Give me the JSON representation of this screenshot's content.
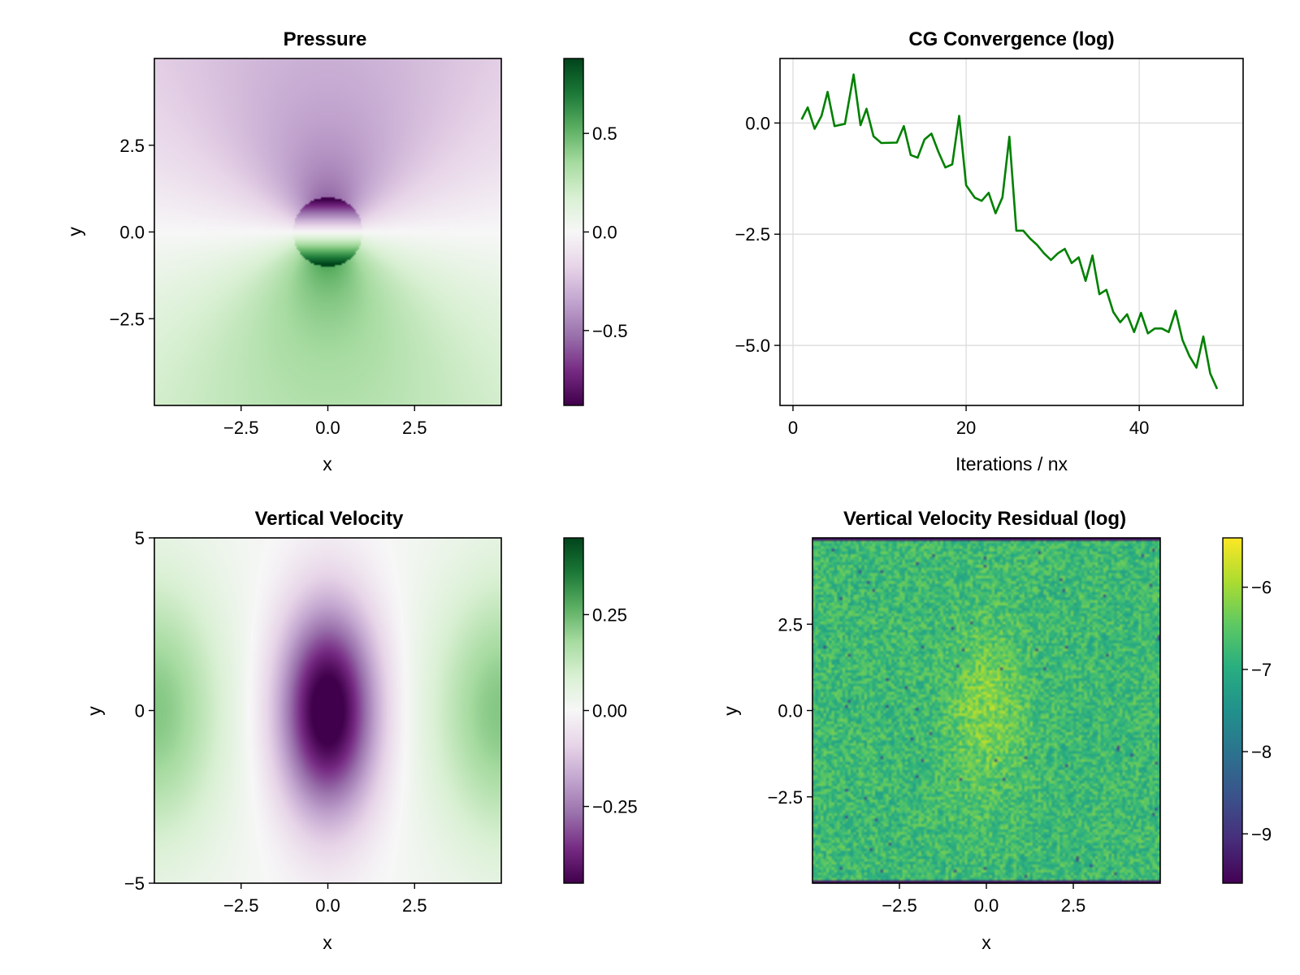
{
  "chart_data": [
    {
      "type": "heatmap",
      "title": "Pressure",
      "xlabel": "x",
      "ylabel": "y",
      "xlim": [
        -5,
        5
      ],
      "ylim": [
        -5,
        5
      ],
      "xticks": [
        -2.5,
        0.0,
        2.5
      ],
      "xtick_labels": [
        "−2.5",
        "0.0",
        "2.5"
      ],
      "yticks": [
        -2.5,
        0.0,
        2.5
      ],
      "ytick_labels": [
        "−2.5",
        "0.0",
        "2.5"
      ],
      "colormap": "PRGn",
      "colorbar": {
        "range": [
          -0.88,
          0.88
        ],
        "ticks": [
          -0.5,
          0.0,
          0.5
        ],
        "tick_labels": [
          "−0.5",
          "0.0",
          "0.5"
        ]
      },
      "field": "dipole pressure around a unit disk centered at origin: negative above, positive below",
      "obstacle_radius": 1.0
    },
    {
      "type": "line",
      "title": "CG Convergence (log)",
      "xlabel": "Iterations / nx",
      "ylabel": "",
      "xlim": [
        -1.5,
        52
      ],
      "ylim": [
        -6.35,
        1.45
      ],
      "grid": true,
      "xticks": [
        0,
        20,
        40
      ],
      "xtick_labels": [
        "0",
        "20",
        "40"
      ],
      "yticks": [
        0.0,
        -2.5,
        -5.0
      ],
      "ytick_labels": [
        "0.0",
        "−2.5",
        "−5.0"
      ],
      "series": [
        {
          "color": "#008000",
          "x": [
            1,
            1.7,
            2.5,
            3.3,
            4,
            4.8,
            6,
            7,
            7.8,
            8.5,
            9.3,
            10.2,
            12,
            12.8,
            13.6,
            14.4,
            15.2,
            16,
            16.8,
            17.6,
            18.4,
            19.2,
            20,
            21,
            21.8,
            22.6,
            23.4,
            24.2,
            25,
            25.8,
            26.6,
            27.4,
            28.2,
            29,
            29.8,
            30.6,
            31.4,
            32.2,
            33,
            33.8,
            34.6,
            35.4,
            36.2,
            37,
            37.8,
            38.6,
            39.4,
            40.2,
            41,
            41.8,
            42.6,
            43.4,
            44.2,
            45,
            45.8,
            46.6,
            47.4,
            48.2,
            49
          ],
          "y": [
            0.08,
            0.35,
            -0.13,
            0.16,
            0.7,
            -0.07,
            -0.02,
            1.09,
            -0.05,
            0.32,
            -0.3,
            -0.45,
            -0.44,
            -0.07,
            -0.72,
            -0.78,
            -0.37,
            -0.24,
            -0.65,
            -1.0,
            -0.93,
            0.16,
            -1.4,
            -1.68,
            -1.75,
            -1.57,
            -2.03,
            -1.67,
            -0.31,
            -2.42,
            -2.42,
            -2.6,
            -2.74,
            -2.93,
            -3.08,
            -2.93,
            -2.83,
            -3.15,
            -3.02,
            -3.55,
            -2.98,
            -3.85,
            -3.75,
            -4.25,
            -4.48,
            -4.3,
            -4.7,
            -4.27,
            -4.73,
            -4.62,
            -4.62,
            -4.7,
            -4.22,
            -4.88,
            -5.24,
            -5.5,
            -4.8,
            -5.63,
            -5.98
          ]
        }
      ]
    },
    {
      "type": "heatmap",
      "title": "Vertical Velocity",
      "xlabel": "x",
      "ylabel": "y",
      "xlim": [
        -5,
        5
      ],
      "ylim": [
        -5,
        5
      ],
      "xticks": [
        -2.5,
        0.0,
        2.5
      ],
      "xtick_labels": [
        "−2.5",
        "0.0",
        "2.5"
      ],
      "yticks": [
        -5,
        0,
        5
      ],
      "ytick_labels": [
        "−5",
        "0",
        "5"
      ],
      "colormap": "PRGn",
      "colorbar": {
        "range": [
          -0.45,
          0.45
        ],
        "ticks": [
          -0.25,
          0.0,
          0.25
        ],
        "tick_labels": [
          "−0.25",
          "0.00",
          "0.25"
        ]
      },
      "field": "negative elongated core at origin, positive lobes near left and right edges"
    },
    {
      "type": "heatmap",
      "title": "Vertical Velocity Residual (log)",
      "xlabel": "x",
      "ylabel": "y",
      "xlim": [
        -5,
        5
      ],
      "ylim": [
        -5,
        5
      ],
      "xticks": [
        -2.5,
        0.0,
        2.5
      ],
      "xtick_labels": [
        "−2.5",
        "0.0",
        "2.5"
      ],
      "yticks": [
        -2.5,
        0.0,
        2.5
      ],
      "ytick_labels": [
        "−2.5",
        "0.0",
        "2.5"
      ],
      "colormap": "viridis",
      "colorbar": {
        "range": [
          -9.6,
          -5.4
        ],
        "ticks": [
          -9,
          -8,
          -7,
          -6
        ],
        "tick_labels": [
          "−9",
          "−8",
          "−7",
          "−6"
        ]
      },
      "field": "noisy residual, mostly between −7 and −6, brighter near the center, dark rows at top and bottom boundary"
    }
  ]
}
